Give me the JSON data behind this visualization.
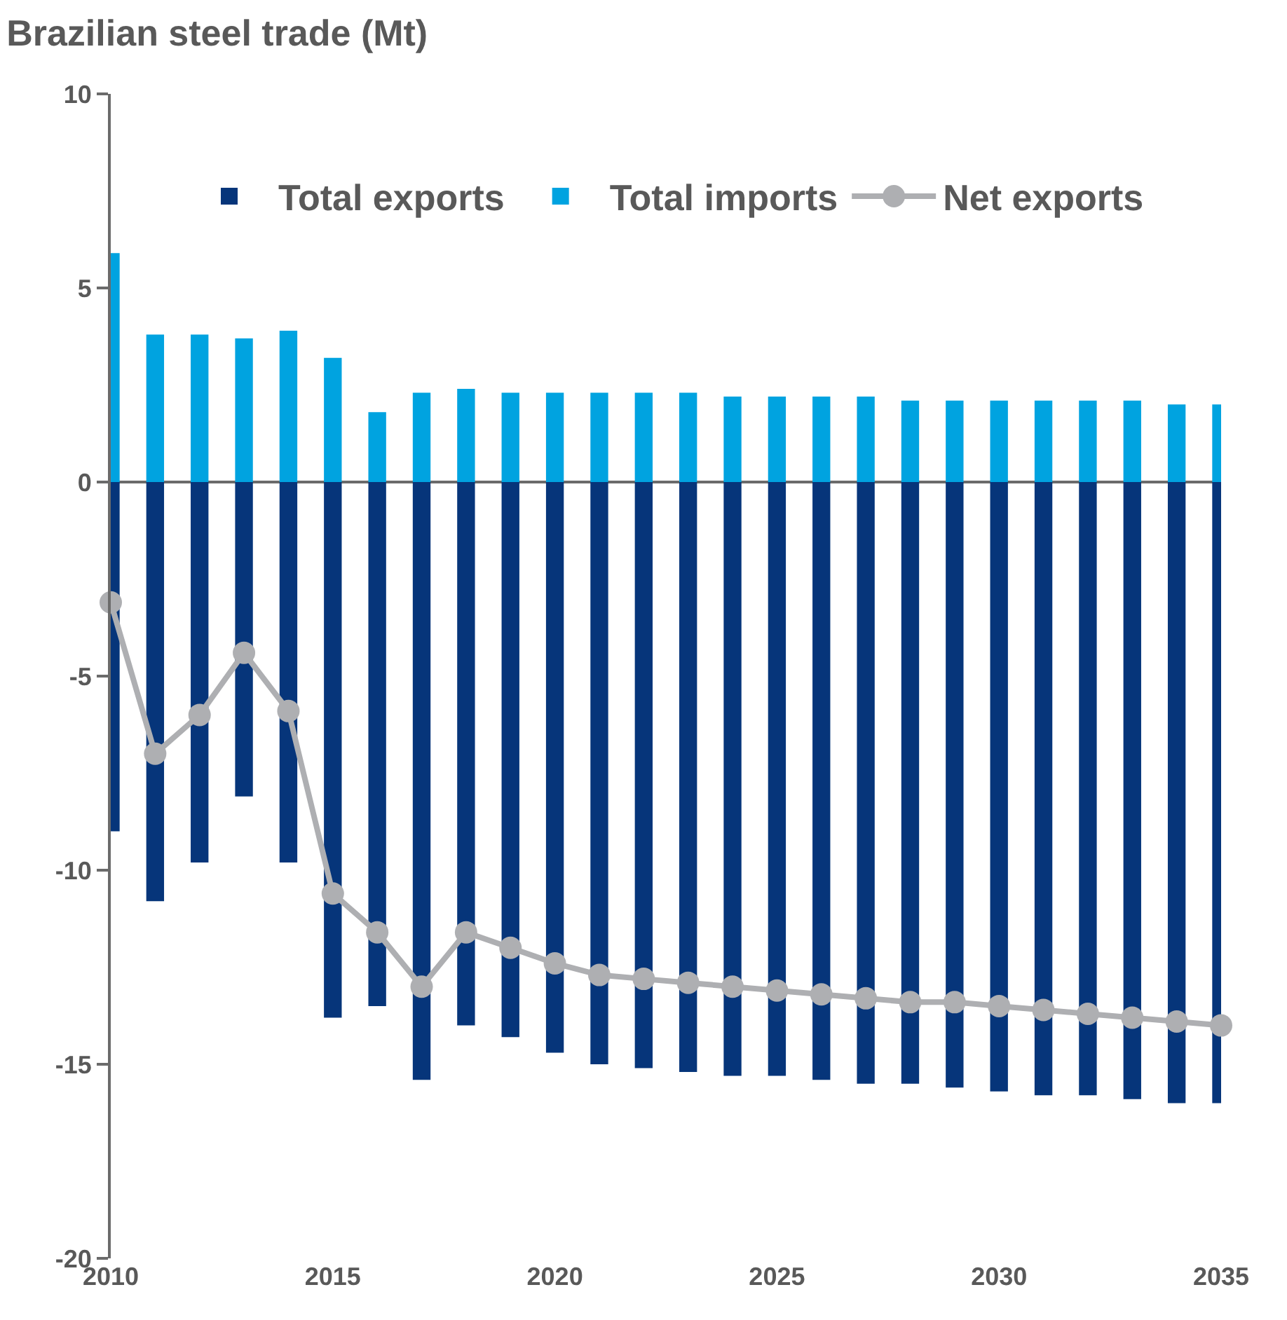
{
  "chart_data": {
    "type": "bar",
    "title": "Brazilian steel trade (Mt)",
    "x": [
      2010,
      2011,
      2012,
      2013,
      2014,
      2015,
      2016,
      2017,
      2018,
      2019,
      2020,
      2021,
      2022,
      2023,
      2024,
      2025,
      2026,
      2027,
      2028,
      2029,
      2030,
      2031,
      2032,
      2033,
      2034,
      2035
    ],
    "stacked": true,
    "series": [
      {
        "name": "Total exports",
        "color": "#06357a",
        "values": [
          -9.0,
          -10.8,
          -9.8,
          -8.1,
          -9.8,
          -13.8,
          -13.5,
          -15.4,
          -14.0,
          -14.3,
          -14.7,
          -15.0,
          -15.1,
          -15.2,
          -15.3,
          -15.3,
          -15.4,
          -15.5,
          -15.5,
          -15.6,
          -15.7,
          -15.8,
          -15.8,
          -15.9,
          -16.0,
          -16.0
        ]
      },
      {
        "name": "Total imports",
        "color": "#00a3e0",
        "values": [
          5.9,
          3.8,
          3.8,
          3.7,
          3.9,
          3.2,
          1.8,
          2.3,
          2.4,
          2.3,
          2.3,
          2.3,
          2.3,
          2.3,
          2.2,
          2.2,
          2.2,
          2.2,
          2.1,
          2.1,
          2.1,
          2.1,
          2.1,
          2.1,
          2.0,
          2.0
        ]
      },
      {
        "name": "Net exports",
        "type": "line",
        "color": "#aeafb2",
        "marker": "circle",
        "line_style": "solid",
        "values": [
          -3.1,
          -7.0,
          -6.0,
          -4.4,
          -5.9,
          -10.6,
          -11.6,
          -13.0,
          -11.6,
          -12.0,
          -12.4,
          -12.7,
          -12.8,
          -12.9,
          -13.0,
          -13.1,
          -13.2,
          -13.3,
          -13.4,
          -13.4,
          -13.5,
          -13.6,
          -13.7,
          -13.8,
          -13.9,
          -14.0
        ]
      }
    ],
    "xlim": [
      2010,
      2035
    ],
    "xticks": [
      2010,
      2015,
      2020,
      2025,
      2030,
      2035
    ],
    "ylim": [
      -20,
      10
    ],
    "yticks": [
      -20,
      -15,
      -10,
      -5,
      0,
      5,
      10
    ],
    "legend": "top"
  }
}
